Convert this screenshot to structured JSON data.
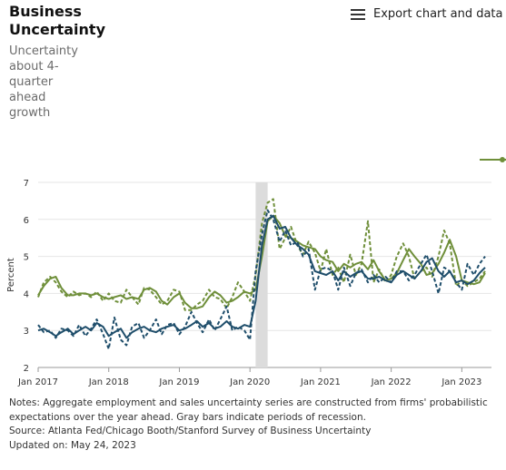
{
  "header": {
    "title": "Business Uncertainty",
    "subtitle": "Uncertainty about 4-quarter ahead growth",
    "export_label": "Export chart and data"
  },
  "notes": {
    "line1": "Notes: Aggregate employment and sales uncertainty series are constructed from firms' probabilistic",
    "line2": "expectations over the year ahead. Gray bars indicate periods of recession.",
    "source": "Source: Atlanta Fed/Chicago Booth/Stanford Survey of Business Uncertainty",
    "updated": "Updated on: May 24, 2023"
  },
  "colors": {
    "green": "#6f8f3a",
    "navy": "#1f4e6b",
    "recession": "#dcdcdc",
    "grid": "#e6e6e6"
  },
  "chart_data": {
    "type": "line",
    "ylabel": "Percent",
    "xlabel": "",
    "ylim": [
      2,
      7
    ],
    "yticks": [
      "2",
      "3",
      "4",
      "5",
      "6",
      "7"
    ],
    "xlim": [
      2017.0,
      2023.42
    ],
    "xticks": [
      {
        "value": 2017.0,
        "label": "Jan 2017"
      },
      {
        "value": 2018.0,
        "label": "Jan 2018"
      },
      {
        "value": 2019.0,
        "label": "Jan 2019"
      },
      {
        "value": 2020.0,
        "label": "Jan 2020"
      },
      {
        "value": 2021.0,
        "label": "Jan 2021"
      },
      {
        "value": 2022.0,
        "label": "Jan 2022"
      },
      {
        "value": 2023.0,
        "label": "Jan 2023"
      }
    ],
    "grid": true,
    "recession": [
      [
        2020.08,
        2020.25
      ]
    ],
    "series": [
      {
        "color": "#6f8f3a",
        "dash": false,
        "x": [
          2017.0,
          2017.08,
          2017.17,
          2017.25,
          2017.33,
          2017.42,
          2017.5,
          2017.58,
          2017.67,
          2017.75,
          2017.83,
          2017.92,
          2018.0,
          2018.08,
          2018.17,
          2018.25,
          2018.33,
          2018.42,
          2018.5,
          2018.58,
          2018.67,
          2018.75,
          2018.83,
          2018.92,
          2019.0,
          2019.08,
          2019.17,
          2019.25,
          2019.33,
          2019.42,
          2019.5,
          2019.58,
          2019.67,
          2019.75,
          2019.83,
          2019.92,
          2020.0,
          2020.08,
          2020.17,
          2020.25,
          2020.33,
          2020.42,
          2020.5,
          2020.58,
          2020.67,
          2020.75,
          2020.83,
          2020.92,
          2021.0,
          2021.08,
          2021.17,
          2021.25,
          2021.33,
          2021.42,
          2021.5,
          2021.58,
          2021.67,
          2021.75,
          2021.83,
          2021.92,
          2022.0,
          2022.08,
          2022.17,
          2022.25,
          2022.33,
          2022.42,
          2022.5,
          2022.58,
          2022.67,
          2022.75,
          2022.83,
          2022.92,
          2023.0,
          2023.08,
          2023.17,
          2023.25,
          2023.33
        ],
        "y": [
          3.95,
          4.2,
          4.4,
          4.45,
          4.15,
          3.95,
          3.95,
          4.0,
          4.0,
          3.95,
          4.0,
          3.9,
          3.85,
          3.9,
          3.95,
          3.85,
          3.9,
          3.85,
          4.1,
          4.15,
          4.05,
          3.8,
          3.7,
          3.9,
          4.0,
          3.75,
          3.6,
          3.6,
          3.65,
          3.9,
          4.05,
          3.95,
          3.75,
          3.8,
          3.9,
          4.05,
          4.0,
          4.1,
          5.0,
          5.95,
          6.1,
          5.9,
          5.55,
          5.5,
          5.4,
          5.3,
          5.25,
          5.2,
          5.0,
          4.9,
          4.85,
          4.6,
          4.8,
          4.7,
          4.8,
          4.85,
          4.65,
          4.9,
          4.6,
          4.35,
          4.4,
          4.55,
          4.9,
          5.2,
          5.0,
          4.8,
          4.5,
          4.55,
          4.8,
          5.1,
          5.45,
          5.0,
          4.35,
          4.3,
          4.25,
          4.3,
          4.55
        ]
      },
      {
        "color": "#6f8f3a",
        "dash": true,
        "x": [
          2017.0,
          2017.08,
          2017.17,
          2017.25,
          2017.33,
          2017.42,
          2017.5,
          2017.58,
          2017.67,
          2017.75,
          2017.83,
          2017.92,
          2018.0,
          2018.08,
          2018.17,
          2018.25,
          2018.33,
          2018.42,
          2018.5,
          2018.58,
          2018.67,
          2018.75,
          2018.83,
          2018.92,
          2019.0,
          2019.08,
          2019.17,
          2019.25,
          2019.33,
          2019.42,
          2019.5,
          2019.58,
          2019.67,
          2019.75,
          2019.83,
          2019.92,
          2020.0,
          2020.08,
          2020.17,
          2020.25,
          2020.33,
          2020.42,
          2020.5,
          2020.58,
          2020.67,
          2020.75,
          2020.83,
          2020.92,
          2021.0,
          2021.08,
          2021.17,
          2021.25,
          2021.33,
          2021.42,
          2021.5,
          2021.58,
          2021.67,
          2021.75,
          2021.83,
          2021.92,
          2022.0,
          2022.08,
          2022.17,
          2022.25,
          2022.33,
          2022.42,
          2022.5,
          2022.58,
          2022.67,
          2022.75,
          2022.83,
          2022.92,
          2023.0,
          2023.08,
          2023.17,
          2023.25,
          2023.33
        ],
        "y": [
          3.9,
          4.3,
          4.45,
          4.3,
          4.05,
          3.9,
          4.05,
          3.95,
          4.0,
          3.9,
          4.05,
          3.8,
          4.0,
          3.8,
          3.75,
          4.1,
          3.9,
          3.7,
          4.15,
          4.1,
          3.9,
          3.7,
          3.8,
          4.1,
          4.05,
          3.55,
          3.55,
          3.7,
          3.8,
          4.1,
          3.9,
          3.85,
          3.6,
          3.9,
          4.3,
          4.05,
          3.8,
          4.5,
          5.9,
          6.45,
          6.55,
          5.2,
          5.5,
          5.8,
          5.3,
          5.05,
          5.4,
          5.1,
          4.6,
          5.2,
          4.5,
          4.7,
          4.3,
          5.05,
          4.5,
          4.8,
          5.95,
          4.3,
          4.65,
          4.3,
          4.5,
          5.0,
          5.35,
          5.0,
          4.4,
          4.6,
          4.7,
          4.45,
          5.0,
          5.7,
          5.35,
          4.2,
          4.35,
          4.2,
          4.3,
          4.4,
          4.6
        ]
      },
      {
        "color": "#1f4e6b",
        "dash": false,
        "x": [
          2017.0,
          2017.08,
          2017.17,
          2017.25,
          2017.33,
          2017.42,
          2017.5,
          2017.58,
          2017.67,
          2017.75,
          2017.83,
          2017.92,
          2018.0,
          2018.08,
          2018.17,
          2018.25,
          2018.33,
          2018.42,
          2018.5,
          2018.58,
          2018.67,
          2018.75,
          2018.83,
          2018.92,
          2019.0,
          2019.08,
          2019.17,
          2019.25,
          2019.33,
          2019.42,
          2019.5,
          2019.58,
          2019.67,
          2019.75,
          2019.83,
          2019.92,
          2020.0,
          2020.08,
          2020.17,
          2020.25,
          2020.33,
          2020.42,
          2020.5,
          2020.58,
          2020.67,
          2020.75,
          2020.83,
          2020.92,
          2021.0,
          2021.08,
          2021.17,
          2021.25,
          2021.33,
          2021.42,
          2021.5,
          2021.58,
          2021.67,
          2021.75,
          2021.83,
          2021.92,
          2022.0,
          2022.08,
          2022.17,
          2022.25,
          2022.33,
          2022.42,
          2022.5,
          2022.58,
          2022.67,
          2022.75,
          2022.83,
          2022.92,
          2023.0,
          2023.08,
          2023.17,
          2023.25,
          2023.33
        ],
        "y": [
          3.0,
          3.05,
          2.95,
          2.85,
          2.95,
          3.05,
          2.9,
          3.0,
          3.1,
          3.0,
          3.2,
          3.1,
          2.85,
          2.95,
          3.05,
          2.8,
          2.95,
          3.05,
          3.1,
          3.0,
          2.95,
          3.05,
          3.1,
          3.15,
          3.0,
          3.05,
          3.15,
          3.25,
          3.1,
          3.2,
          3.05,
          3.1,
          3.25,
          3.1,
          3.05,
          3.15,
          3.1,
          3.8,
          5.3,
          6.0,
          6.1,
          5.75,
          5.8,
          5.5,
          5.3,
          5.2,
          5.05,
          4.6,
          4.55,
          4.5,
          4.6,
          4.35,
          4.6,
          4.45,
          4.55,
          4.6,
          4.4,
          4.4,
          4.45,
          4.35,
          4.3,
          4.5,
          4.6,
          4.5,
          4.4,
          4.6,
          4.85,
          4.95,
          4.6,
          4.45,
          4.6,
          4.3,
          4.35,
          4.25,
          4.35,
          4.55,
          4.7
        ]
      },
      {
        "color": "#1f4e6b",
        "dash": true,
        "x": [
          2017.0,
          2017.08,
          2017.17,
          2017.25,
          2017.33,
          2017.42,
          2017.5,
          2017.58,
          2017.67,
          2017.75,
          2017.83,
          2017.92,
          2018.0,
          2018.08,
          2018.17,
          2018.25,
          2018.33,
          2018.42,
          2018.5,
          2018.58,
          2018.67,
          2018.75,
          2018.83,
          2018.92,
          2019.0,
          2019.08,
          2019.17,
          2019.25,
          2019.33,
          2019.42,
          2019.5,
          2019.58,
          2019.67,
          2019.75,
          2019.83,
          2019.92,
          2020.0,
          2020.08,
          2020.17,
          2020.25,
          2020.33,
          2020.42,
          2020.5,
          2020.58,
          2020.67,
          2020.75,
          2020.83,
          2020.92,
          2021.0,
          2021.08,
          2021.17,
          2021.25,
          2021.33,
          2021.42,
          2021.5,
          2021.58,
          2021.67,
          2021.75,
          2021.83,
          2021.92,
          2022.0,
          2022.08,
          2022.17,
          2022.25,
          2022.33,
          2022.42,
          2022.5,
          2022.58,
          2022.67,
          2022.75,
          2022.83,
          2022.92,
          2023.0,
          2023.08,
          2023.17,
          2023.25,
          2023.33
        ],
        "y": [
          3.15,
          2.95,
          3.0,
          2.8,
          3.05,
          3.0,
          2.85,
          3.15,
          2.85,
          3.05,
          3.3,
          2.9,
          2.5,
          3.35,
          2.75,
          2.6,
          3.1,
          3.2,
          2.8,
          3.0,
          3.3,
          2.9,
          3.15,
          3.2,
          2.9,
          3.1,
          3.5,
          3.2,
          2.95,
          3.3,
          3.0,
          3.3,
          3.65,
          3.0,
          3.1,
          3.0,
          2.75,
          4.6,
          5.6,
          6.25,
          6.0,
          5.4,
          5.7,
          5.3,
          5.4,
          5.0,
          5.2,
          4.1,
          4.65,
          4.7,
          4.6,
          4.1,
          4.7,
          4.2,
          4.55,
          4.65,
          4.3,
          4.5,
          4.3,
          4.45,
          4.3,
          4.6,
          4.6,
          4.35,
          4.5,
          4.8,
          5.05,
          4.6,
          4.0,
          4.7,
          4.6,
          4.3,
          4.1,
          4.8,
          4.5,
          4.8,
          5.0
        ]
      }
    ]
  }
}
